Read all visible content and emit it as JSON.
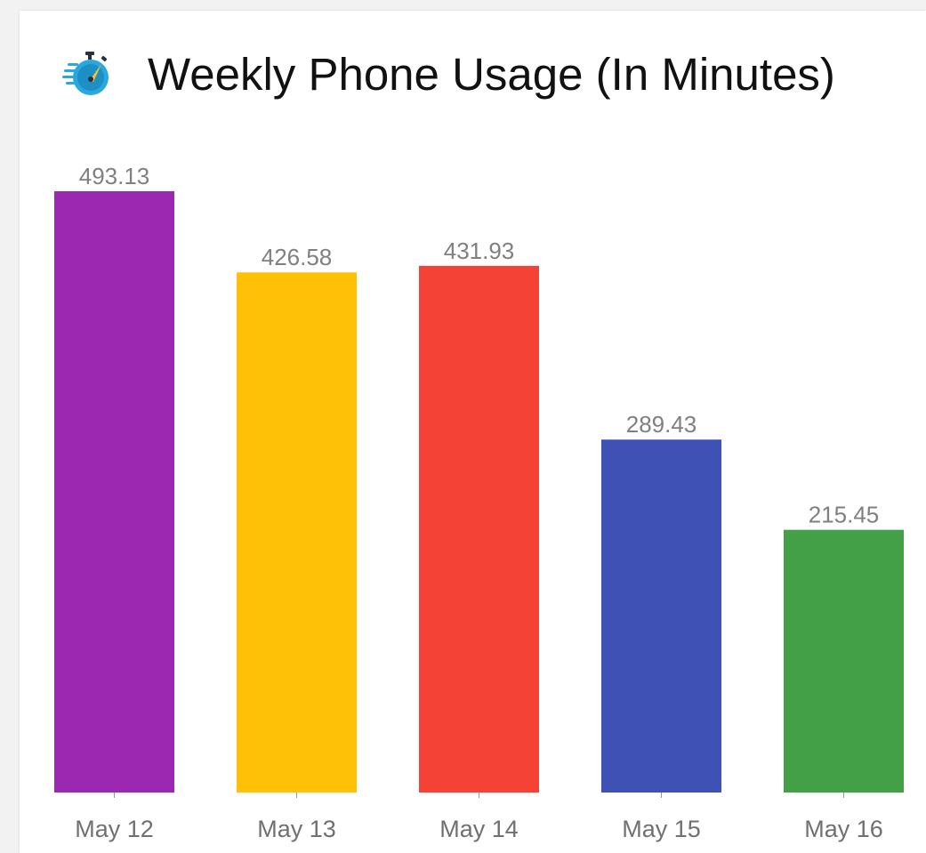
{
  "header": {
    "title": "Weekly Phone Usage (In Minutes)",
    "icon": "stopwatch-icon"
  },
  "colors": {
    "background": "#f2f2f2",
    "card": "#ffffff",
    "value_label": "#808080",
    "category_label": "#707070",
    "bars": [
      "#9c27b0",
      "#ffc107",
      "#f44336",
      "#3f51b5",
      "#43a047"
    ]
  },
  "chart_data": {
    "type": "bar",
    "categories": [
      "May 12",
      "May 13",
      "May 14",
      "May 15",
      "May 16"
    ],
    "values": [
      493.13,
      426.58,
      431.93,
      289.43,
      215.45
    ],
    "value_labels": [
      "493.13",
      "426.58",
      "431.93",
      "289.43",
      "215.45"
    ],
    "title": "Weekly Phone Usage (In Minutes)",
    "xlabel": "",
    "ylabel": "",
    "ylim": [
      0,
      493.13
    ],
    "grid": false,
    "legend": "none"
  }
}
